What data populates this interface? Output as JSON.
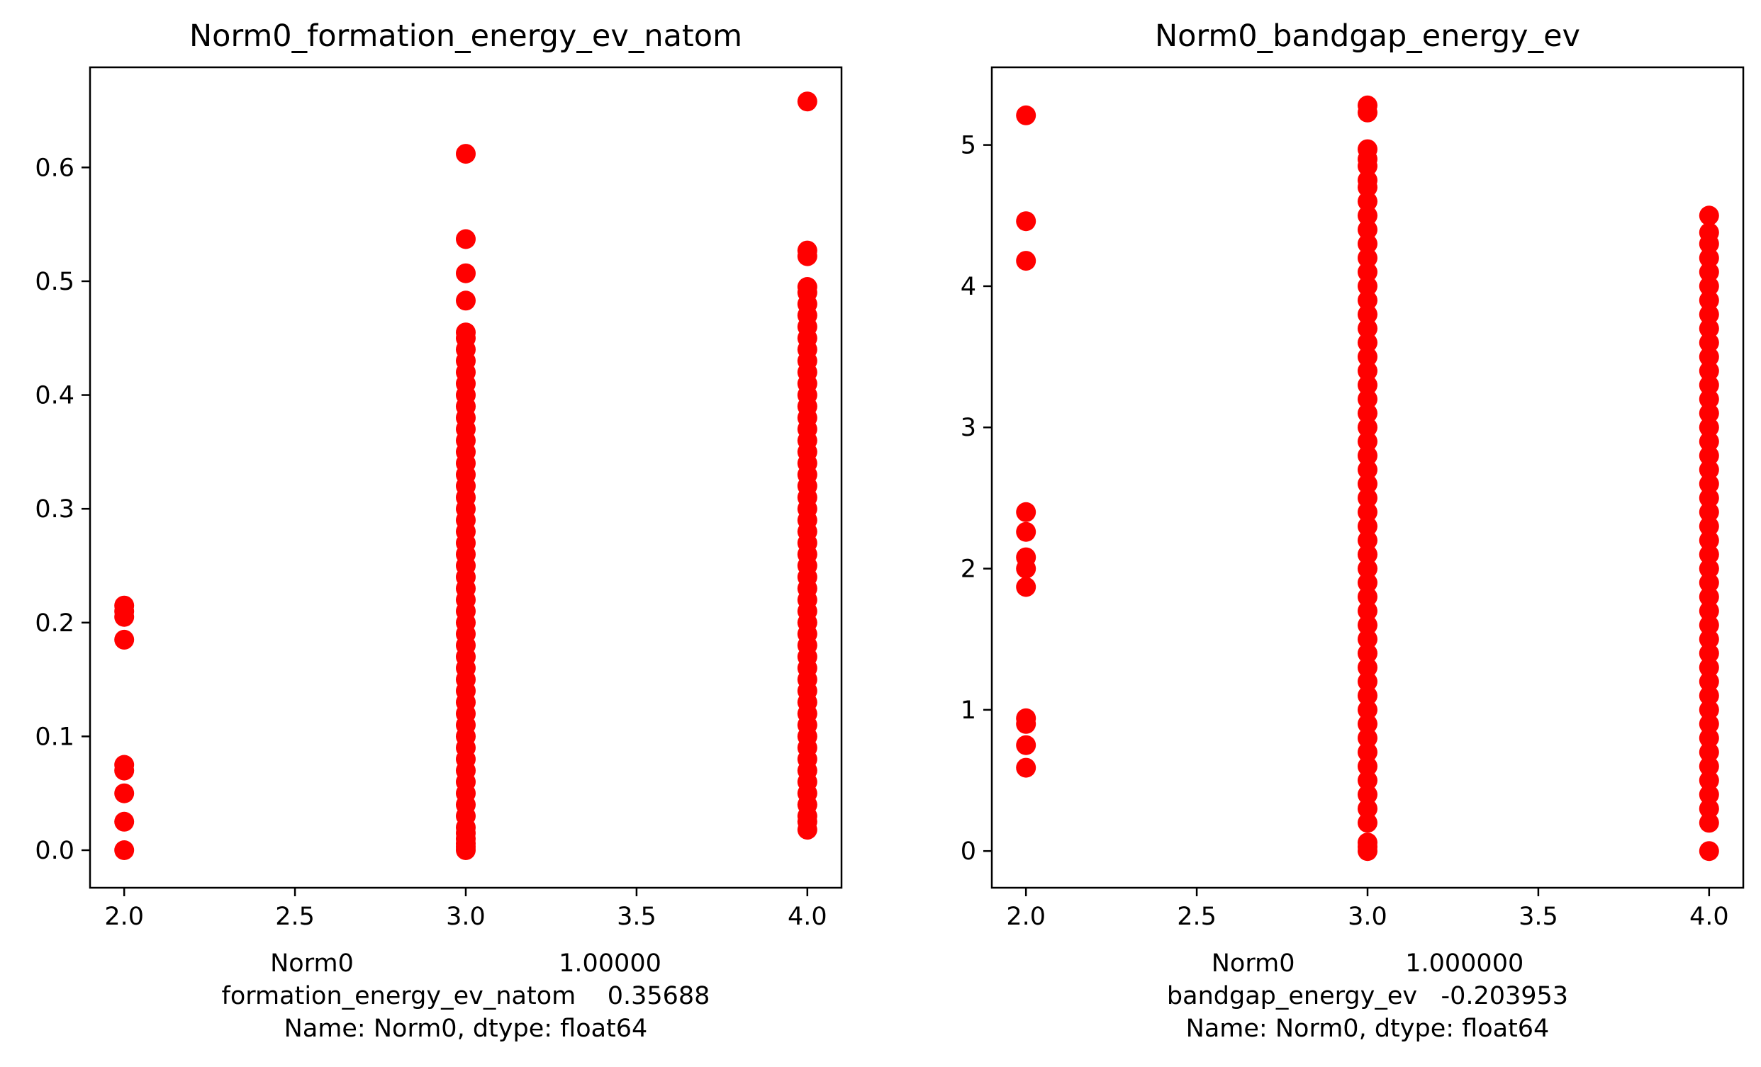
{
  "chart_data": [
    {
      "type": "scatter",
      "title": "Norm0_formation_energy_ev_natom",
      "xlabel_lines": [
        "Norm0                          1.00000",
        "formation_energy_ev_natom    0.35688",
        "Name: Norm0, dtype: float64"
      ],
      "ylabel": "",
      "marker_color": "#ff0000",
      "xlim": [
        1.9,
        4.1
      ],
      "ylim": [
        -0.033,
        0.688
      ],
      "xticks": [
        2.0,
        2.5,
        3.0,
        3.5,
        4.0
      ],
      "xtick_labels": [
        "2.0",
        "2.5",
        "3.0",
        "3.5",
        "4.0"
      ],
      "yticks": [
        0.0,
        0.1,
        0.2,
        0.3,
        0.4,
        0.5,
        0.6
      ],
      "ytick_labels": [
        "0.0",
        "0.1",
        "0.2",
        "0.3",
        "0.4",
        "0.5",
        "0.6"
      ],
      "grid": false,
      "points": [
        {
          "x": 2.0,
          "y": [
            0.0,
            0.025,
            0.05,
            0.07,
            0.075,
            0.185,
            0.205,
            0.21,
            0.215
          ]
        },
        {
          "x": 3.0,
          "y": [
            0.0,
            0.003,
            0.006,
            0.01,
            0.015,
            0.02,
            0.03,
            0.04,
            0.05,
            0.06,
            0.07,
            0.08,
            0.09,
            0.1,
            0.11,
            0.12,
            0.13,
            0.14,
            0.15,
            0.16,
            0.17,
            0.18,
            0.19,
            0.2,
            0.21,
            0.22,
            0.23,
            0.24,
            0.25,
            0.26,
            0.27,
            0.28,
            0.29,
            0.3,
            0.31,
            0.32,
            0.33,
            0.34,
            0.35,
            0.36,
            0.37,
            0.38,
            0.39,
            0.4,
            0.41,
            0.42,
            0.43,
            0.44,
            0.45,
            0.455,
            0.483,
            0.507,
            0.537,
            0.612
          ]
        },
        {
          "x": 4.0,
          "y": [
            0.018,
            0.025,
            0.03,
            0.04,
            0.05,
            0.06,
            0.07,
            0.08,
            0.09,
            0.1,
            0.11,
            0.12,
            0.13,
            0.14,
            0.15,
            0.16,
            0.17,
            0.18,
            0.19,
            0.2,
            0.21,
            0.22,
            0.23,
            0.24,
            0.25,
            0.26,
            0.27,
            0.28,
            0.29,
            0.3,
            0.31,
            0.32,
            0.33,
            0.34,
            0.35,
            0.36,
            0.37,
            0.38,
            0.39,
            0.4,
            0.41,
            0.42,
            0.43,
            0.44,
            0.45,
            0.46,
            0.47,
            0.48,
            0.49,
            0.495,
            0.522,
            0.527,
            0.658
          ]
        }
      ]
    },
    {
      "type": "scatter",
      "title": "Norm0_bandgap_energy_ev",
      "xlabel_lines": [
        "Norm0              1.000000",
        "bandgap_energy_ev   -0.203953",
        "Name: Norm0, dtype: float64"
      ],
      "ylabel": "",
      "marker_color": "#ff0000",
      "xlim": [
        1.9,
        4.1
      ],
      "ylim": [
        -0.26,
        5.55
      ],
      "xticks": [
        2.0,
        2.5,
        3.0,
        3.5,
        4.0
      ],
      "xtick_labels": [
        "2.0",
        "2.5",
        "3.0",
        "3.5",
        "4.0"
      ],
      "yticks": [
        0,
        1,
        2,
        3,
        4,
        5
      ],
      "ytick_labels": [
        "0",
        "1",
        "2",
        "3",
        "4",
        "5"
      ],
      "grid": false,
      "points": [
        {
          "x": 2.0,
          "y": [
            0.59,
            0.75,
            0.9,
            0.94,
            1.87,
            2.0,
            2.08,
            2.26,
            2.4,
            4.18,
            4.46,
            5.21
          ]
        },
        {
          "x": 3.0,
          "y": [
            0.0,
            0.03,
            0.06,
            0.2,
            0.3,
            0.4,
            0.5,
            0.6,
            0.7,
            0.8,
            0.9,
            1.0,
            1.1,
            1.2,
            1.3,
            1.4,
            1.5,
            1.6,
            1.7,
            1.8,
            1.9,
            2.0,
            2.1,
            2.2,
            2.3,
            2.4,
            2.5,
            2.6,
            2.7,
            2.8,
            2.9,
            3.0,
            3.1,
            3.2,
            3.3,
            3.4,
            3.5,
            3.6,
            3.7,
            3.8,
            3.9,
            4.0,
            4.1,
            4.2,
            4.3,
            4.4,
            4.5,
            4.6,
            4.7,
            4.75,
            4.85,
            4.9,
            4.97,
            5.23,
            5.28
          ]
        },
        {
          "x": 4.0,
          "y": [
            0.0,
            0.2,
            0.3,
            0.4,
            0.5,
            0.6,
            0.7,
            0.8,
            0.9,
            1.0,
            1.1,
            1.2,
            1.3,
            1.4,
            1.5,
            1.6,
            1.7,
            1.8,
            1.9,
            2.0,
            2.1,
            2.2,
            2.3,
            2.4,
            2.5,
            2.6,
            2.7,
            2.8,
            2.9,
            3.0,
            3.1,
            3.2,
            3.3,
            3.4,
            3.5,
            3.6,
            3.7,
            3.8,
            3.9,
            4.0,
            4.1,
            4.2,
            4.3,
            4.38,
            4.5
          ]
        }
      ]
    }
  ]
}
